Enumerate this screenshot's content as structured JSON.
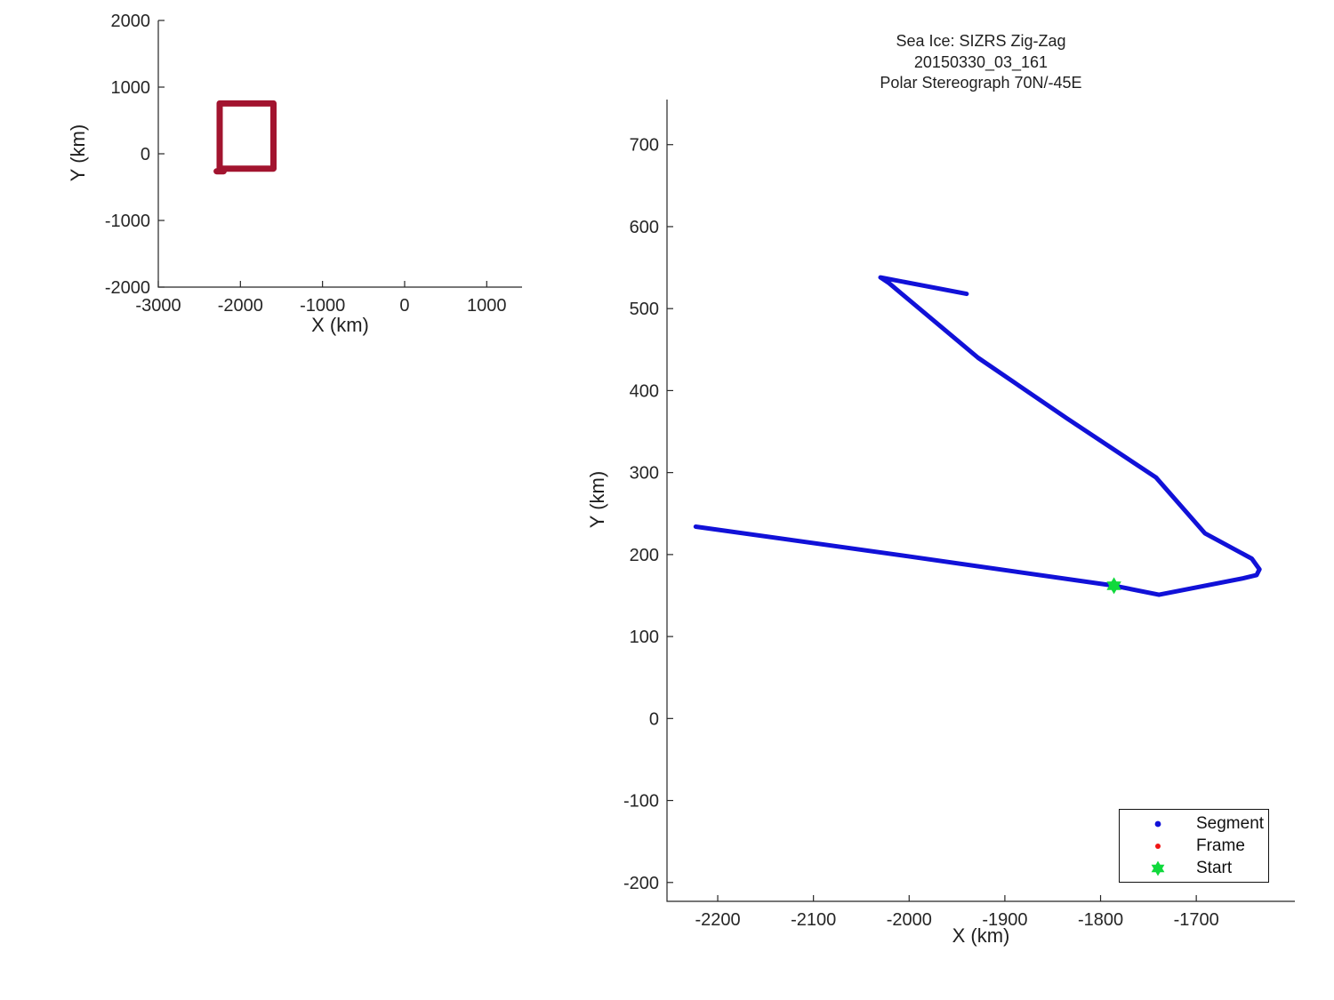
{
  "figure": {
    "background": "#ffffff"
  },
  "overview_plot": {
    "xlabel": "X (km)",
    "ylabel": "Y (km)"
  },
  "detail_plot": {
    "title_lines": [
      "Sea Ice: SIZRS Zig-Zag",
      "20150330_03_161",
      "Polar Stereograph 70N/-45E"
    ],
    "xlabel": "X (km)",
    "ylabel": "Y (km)",
    "legend": {
      "position": "lower right",
      "items": [
        {
          "label": "Segment",
          "marker": "dot",
          "color": "#1111D8"
        },
        {
          "label": "Frame",
          "marker": "dot",
          "color": "#F01515"
        },
        {
          "label": "Start",
          "marker": "hexagram",
          "color": "#10D93C"
        }
      ]
    }
  },
  "chart_data": [
    {
      "type": "line",
      "panel": "overview",
      "title": "",
      "xlabel": "X (km)",
      "ylabel": "Y (km)",
      "xlim": [
        -3000,
        1430
      ],
      "ylim": [
        -2000,
        2000
      ],
      "xticks": [
        -3000,
        -2000,
        -1000,
        0,
        1000
      ],
      "yticks": [
        -2000,
        -1000,
        0,
        1000,
        2000
      ],
      "grid": false,
      "series": [
        {
          "name": "detail-region-outline",
          "color": "#A2142F",
          "linewidth": 7,
          "x": [
            -2253,
            -1597,
            -1597,
            -2253,
            -2253
          ],
          "y": [
            755,
            755,
            -223,
            -223,
            755
          ]
        },
        {
          "name": "region-outline-tail",
          "color": "#A2142F",
          "linewidth": 7,
          "x": [
            -2290,
            -2205
          ],
          "y": [
            -262,
            -262
          ]
        }
      ],
      "markers": []
    },
    {
      "type": "line",
      "panel": "detail",
      "title": "Sea Ice: SIZRS Zig-Zag 20150330_03_161 Polar Stereograph 70N/-45E",
      "xlabel": "X (km)",
      "ylabel": "Y (km)",
      "xlim": [
        -2253,
        -1597
      ],
      "ylim": [
        -223,
        755
      ],
      "xticks": [
        -2200,
        -2100,
        -2000,
        -1900,
        -1800,
        -1700
      ],
      "yticks": [
        -200,
        -100,
        0,
        100,
        200,
        300,
        400,
        500,
        600,
        700
      ],
      "grid": false,
      "legend_position": "lower right",
      "series": [
        {
          "name": "Segment",
          "color": "#1111D8",
          "linewidth": 5,
          "x": [
            -2223,
            -2002,
            -1786,
            -1739,
            -1651,
            -1637,
            -1634,
            -1642,
            -1691,
            -1742,
            -1835,
            -1928,
            -2021,
            -2030,
            -1940
          ],
          "y": [
            234,
            198,
            162,
            151,
            171,
            175,
            182,
            195,
            226,
            294,
            366,
            440,
            531,
            538,
            518
          ]
        }
      ],
      "markers": [
        {
          "name": "Start",
          "marker": "hexagram",
          "color": "#10D93C",
          "size": 19,
          "x": -1786,
          "y": 162
        }
      ]
    }
  ]
}
